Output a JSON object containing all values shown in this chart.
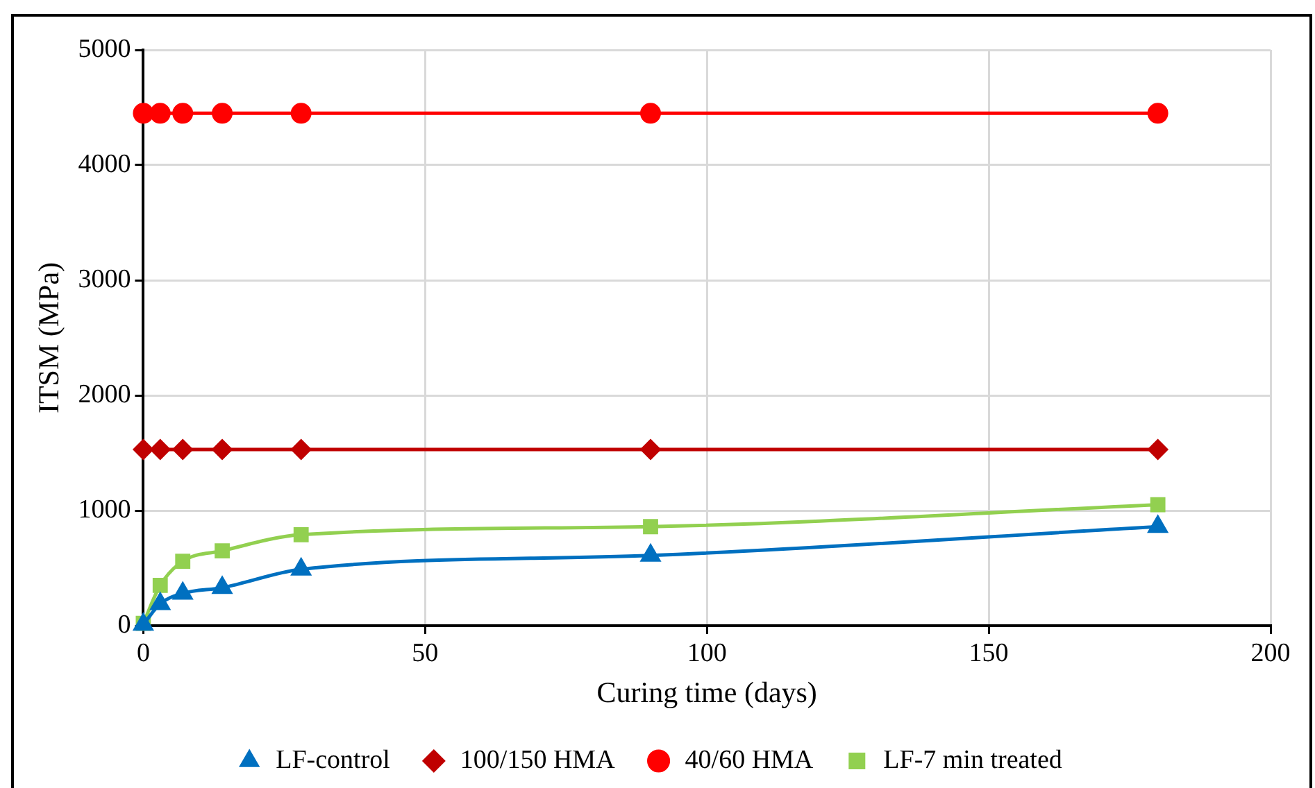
{
  "chart_data": {
    "type": "line",
    "xlabel": "Curing time (days)",
    "ylabel": "ITSM (MPa)",
    "x": [
      0,
      3,
      7,
      14,
      28,
      90,
      180
    ],
    "series": [
      {
        "name": "LF-control",
        "color": "#0070c0",
        "marker": "triangle",
        "values": [
          10,
          190,
          280,
          330,
          490,
          610,
          860
        ]
      },
      {
        "name": "100/150 HMA",
        "color": "#c00000",
        "marker": "diamond",
        "values": [
          1530,
          1530,
          1530,
          1530,
          1530,
          1530,
          1530
        ]
      },
      {
        "name": "40/60 HMA",
        "color": "#ff0000",
        "marker": "circle",
        "values": [
          4450,
          4450,
          4450,
          4450,
          4450,
          4450,
          4450
        ]
      },
      {
        "name": "LF-7 min treated",
        "color": "#92d050",
        "marker": "square",
        "values": [
          20,
          350,
          560,
          650,
          790,
          860,
          1050
        ]
      }
    ],
    "xlim": [
      0,
      200
    ],
    "xticks": [
      0,
      50,
      100,
      150,
      200
    ],
    "ylim": [
      0,
      5000
    ],
    "yticks": [
      0,
      1000,
      2000,
      3000,
      4000,
      5000
    ],
    "grid": true,
    "legend": "bottom"
  }
}
